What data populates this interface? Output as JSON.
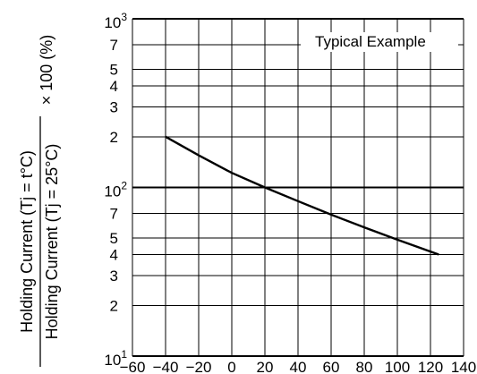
{
  "chart_data": {
    "type": "line",
    "yscale": "log",
    "xlim": [
      -60,
      140
    ],
    "ylim": [
      10,
      1000
    ],
    "x_ticks": [
      "−60",
      "−40",
      "−20",
      "0",
      "20",
      "40",
      "60",
      "80",
      "100",
      "120",
      "140"
    ],
    "y_ticks": [
      {
        "value": 1000,
        "base": "10",
        "exp": "3"
      },
      {
        "value": 700,
        "label": "7"
      },
      {
        "value": 500,
        "label": "5"
      },
      {
        "value": 400,
        "label": "4"
      },
      {
        "value": 300,
        "label": "3"
      },
      {
        "value": 200,
        "label": "2"
      },
      {
        "value": 100,
        "base": "10",
        "exp": "2"
      },
      {
        "value": 70,
        "label": "7"
      },
      {
        "value": 50,
        "label": "5"
      },
      {
        "value": 40,
        "label": "4"
      },
      {
        "value": 30,
        "label": "3"
      },
      {
        "value": 20,
        "label": "2"
      },
      {
        "value": 10,
        "base": "10",
        "exp": "1"
      }
    ],
    "ylabel": {
      "numerator": "Holding Current  (Tj = t°C)",
      "denominator": "Holding Current  (Tj = 25°C)",
      "suffix": "× 100 (%)"
    },
    "annotation": "Typical Example",
    "series": [
      {
        "x": [
          -40,
          -20,
          0,
          20,
          40,
          60,
          80,
          100,
          125
        ],
        "y": [
          200,
          155,
          122,
          100,
          83,
          69,
          58,
          49,
          40
        ]
      }
    ],
    "grid": true
  }
}
